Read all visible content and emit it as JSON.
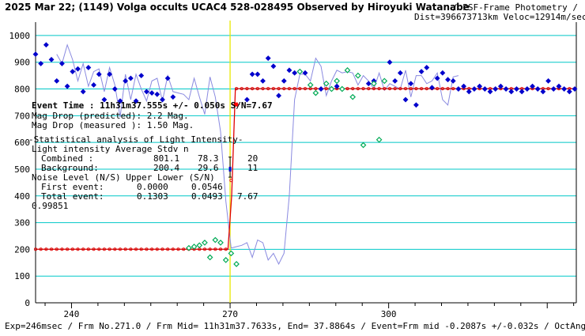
{
  "chart_data": {
    "type": "line",
    "title_bold": "2025 Mar 22; (1149) Volga occults UCAC4 528-028495 Observed by Hiroyuki Watanabe",
    "title_suffix": "/ PSF-Frame Photometry /",
    "subtitle": "Dist=396673713km Veloc=12914m/sec",
    "footer": "Exp=246msec / Frm No.271.0 / Frm Mid= 11h31m37.7633s, End= 37.8864s / Event=Frm mid -0.2087s +/-0.032s / OctAngle=0.0deg",
    "xlim": [
      233.2,
      335.5
    ],
    "ylim": [
      0,
      1050
    ],
    "x_ticks": [
      240,
      270,
      300
    ],
    "y_ticks": [
      0,
      100,
      200,
      300,
      400,
      500,
      600,
      700,
      800,
      900,
      1000
    ],
    "grid": true,
    "event_frame": 270.0,
    "model": {
      "x": [
        233.2,
        269.6,
        270.3,
        271.0,
        335.5
      ],
      "y": [
        200.4,
        200.4,
        401,
        801.1,
        801.1
      ]
    },
    "event_marker": {
      "x": 271.1,
      "y": 742
    },
    "error_bar": {
      "x": 270.0,
      "y": 500,
      "low": 470,
      "high": 545
    },
    "series": [
      {
        "marker": "diamond",
        "color": "#0000cc",
        "x": [
          233.2,
          234.2,
          235.2,
          236.2,
          237.2,
          238.2,
          239.2,
          240.2,
          241.2,
          242.2,
          243.2,
          244.2,
          245.2,
          246.2,
          247.2,
          248.2,
          249.2,
          250.2,
          251.2,
          252.2,
          253.2,
          254.2,
          255.2,
          256.2,
          257.2,
          258.2,
          259.2
        ],
        "y": [
          930,
          895,
          965,
          910,
          830,
          895,
          810,
          865,
          875,
          790,
          880,
          815,
          695,
          855,
          760,
          855,
          800,
          755,
          830,
          840,
          755,
          850,
          790,
          785,
          780,
          760,
          840
        ]
      },
      {
        "marker": "diamond",
        "color": "#00aa55",
        "x": [
          260.2,
          261.2,
          262.2,
          263.2,
          264.2,
          265.2,
          266.2,
          267.2,
          268.2,
          269.2
        ],
        "y": [
          205,
          210,
          215,
          225,
          170,
          235,
          225,
          160,
          185,
          145
        ]
      },
      {
        "marker": "diamond",
        "color": "#0000cc",
        "x": [
          270.2,
          271.2,
          272.2,
          273.2,
          274.2,
          275.2,
          276.2,
          277.2,
          278.2,
          279.2,
          280.2,
          281.2,
          282.2,
          283.2,
          284.2,
          285.2,
          286.2,
          287.2,
          288.2,
          289.2,
          290.2,
          291.2,
          292.2,
          293.2,
          294.2,
          295.2,
          296.2,
          297.2,
          298.2,
          299.2,
          300.2,
          301.2,
          302.2,
          303.2,
          304.2,
          305.2,
          306.2,
          307.2,
          308.2,
          309.2,
          310.2,
          311.2,
          312.2,
          313.2,
          314.2,
          315.2,
          316.2,
          317.2,
          318.2,
          319.2,
          320.2,
          321.2,
          322.2,
          323.2,
          324.2,
          325.2,
          326.2,
          327.2,
          328.2,
          329.2,
          330.2,
          331.2,
          332.2,
          333.2,
          334.2,
          335.2
        ],
        "y": [
          400,
          760,
          855,
          855,
          830,
          915,
          885,
          775,
          830,
          870,
          860,
          865,
          860,
          815,
          850,
          830,
          800,
          860,
          795,
          820,
          810,
          800,
          870,
          770,
          850,
          850,
          820,
          830,
          860,
          760,
          740,
          845,
          850,
          800,
          790,
          790,
          780,
          770,
          760,
          760,
          775,
          790,
          810,
          800,
          810,
          800,
          790,
          800,
          790,
          800,
          810,
          800,
          790,
          810,
          800,
          790,
          800,
          800,
          790,
          830,
          800,
          810,
          800,
          790,
          800,
          810
        ]
      }
    ],
    "measured_points": {
      "x": [
        237.2,
        238.2,
        239.2,
        240.2,
        241.2,
        242.2,
        243.2,
        244.2,
        245.2,
        246.2,
        247.2,
        248.2,
        249.2,
        250.2,
        251.2,
        252.2,
        253.2,
        254.2,
        255.2,
        256.2,
        257.2,
        258.2,
        259.2,
        260.2,
        261.2,
        262.2,
        263.2,
        264.2,
        265.2,
        266.2,
        267.2,
        268.2,
        269.2,
        270.2,
        271.2,
        272.2,
        273.2,
        274.2,
        275.2,
        276.2,
        277.2,
        278.2,
        279.2,
        280.2,
        281.2,
        282.2,
        283.2,
        284.2,
        285.2,
        286.2,
        287.2,
        288.2,
        289.2,
        290.2,
        291.2,
        292.2,
        293.2,
        294.2,
        295.2,
        296.2,
        297.2,
        298.2,
        299.2,
        300.2,
        301.2,
        302.2,
        303.2,
        304.2,
        305.2,
        306.2,
        307.2,
        308.2,
        309.2,
        310.2,
        311.2,
        312.2,
        313.2
      ],
      "y": [
        930,
        895,
        965,
        910,
        830,
        895,
        810,
        865,
        875,
        790,
        880,
        815,
        695,
        855,
        760,
        855,
        800,
        755,
        830,
        840,
        755,
        850,
        790,
        785,
        780,
        760,
        840,
        770,
        705,
        845,
        770,
        640,
        380,
        205,
        210,
        215,
        225,
        170,
        235,
        225,
        160,
        185,
        145,
        185,
        400,
        760,
        855,
        855,
        830,
        915,
        885,
        775,
        830,
        870,
        860,
        865,
        860,
        815,
        850,
        830,
        800,
        860,
        795,
        820,
        810,
        800,
        870,
        770,
        850,
        850,
        820,
        830,
        860,
        760,
        740,
        845,
        850
      ]
    },
    "blue_points": {
      "x": [
        233.2,
        234.2,
        235.2,
        236.2,
        237.2,
        238.2,
        239.2,
        240.2,
        241.2,
        242.2,
        243.2,
        244.2,
        245.2,
        246.2,
        247.2,
        248.2,
        249.2,
        250.2,
        251.2,
        252.2,
        253.2,
        254.2,
        255.2,
        256.2,
        257.2,
        258.2,
        259.2,
        273.2,
        274.2,
        275.2,
        276.2,
        277.2,
        278.2,
        279.2,
        280.2,
        281.2,
        282.2,
        284.2,
        287.2,
        290.2,
        296.2,
        297.2,
        300.2,
        301.2,
        302.2,
        303.2,
        304.2,
        305.2,
        306.2,
        307.2,
        308.2,
        309.2,
        310.2,
        311.2,
        312.2,
        313.2,
        314.2,
        315.2,
        316.2,
        317.2,
        318.2,
        319.2,
        320.2,
        321.2,
        322.2,
        323.2,
        324.2,
        325.2,
        326.2,
        327.2,
        328.2,
        329.2,
        330.2,
        331.2,
        332.2,
        333.2,
        334.2,
        335.2
      ],
      "y": [
        930,
        895,
        965,
        910,
        830,
        895,
        810,
        865,
        875,
        790,
        880,
        815,
        855,
        760,
        855,
        800,
        755,
        830,
        840,
        755,
        850,
        790,
        785,
        780,
        760,
        840,
        770,
        760,
        855,
        855,
        830,
        915,
        885,
        775,
        830,
        870,
        860,
        860,
        800,
        810,
        820,
        830,
        900,
        830,
        860,
        760,
        820,
        740,
        865,
        880,
        805,
        840,
        860,
        835,
        830,
        800,
        810,
        790,
        800,
        810,
        800,
        790,
        800,
        810,
        800,
        790,
        800,
        790,
        800,
        810,
        800,
        790,
        830,
        800,
        810,
        800,
        790,
        800
      ]
    },
    "green_points": {
      "x": [
        262.2,
        263.2,
        264.2,
        265.2,
        266.2,
        267.2,
        268.2,
        269.2,
        270.2,
        271.2,
        283.2,
        285.2,
        286.2,
        288.2,
        289.2,
        290.2,
        291.2,
        292.2,
        293.2,
        294.2,
        295.2,
        297.2,
        298.2,
        299.2
      ],
      "y": [
        205,
        210,
        215,
        225,
        170,
        235,
        225,
        160,
        185,
        145,
        865,
        815,
        785,
        820,
        800,
        830,
        800,
        870,
        770,
        850,
        590,
        820,
        610,
        830
      ]
    },
    "light_intensity_rows": [
      {
        "label": "Combined  :",
        "average": "801.1",
        "stdv": "78.3",
        "n": "20"
      },
      {
        "label": "Background:",
        "average": "200.4",
        "stdv": "29.6",
        "n": "11"
      }
    ],
    "noise_rows": [
      {
        "label": "First event:",
        "upper": "0.0000",
        "lower": "0.0546",
        "sn": ""
      },
      {
        "label": "Total event:",
        "upper": "0.1303",
        "lower": "0.0493",
        "sn": "7.67"
      }
    ]
  },
  "annotations": {
    "event_time": "Event Time : 11h31m37.555s  +/- 0.050s  S/N=7.67",
    "mag_pred": "Mag Drop (predicted):  2.2   Mag.",
    "mag_meas": "Mag Drop (measured ):  1.50  Mag.",
    "stat_header": "-Statistical analysis of Light Intensity-",
    "li_header": "Light intensity    Average   Stdv      n",
    "noise_header": "Noise Level (N/S)  Upper     Lower   (S/N)",
    "corr": "0.99851"
  },
  "colors": {
    "grid": "#00c8c8",
    "event_line": "#e8e800",
    "model": "#e00000",
    "points_blue": "#0000cc",
    "points_green": "#00aa55",
    "line": "#8a8ae0",
    "event_marker": "#ff0000"
  }
}
